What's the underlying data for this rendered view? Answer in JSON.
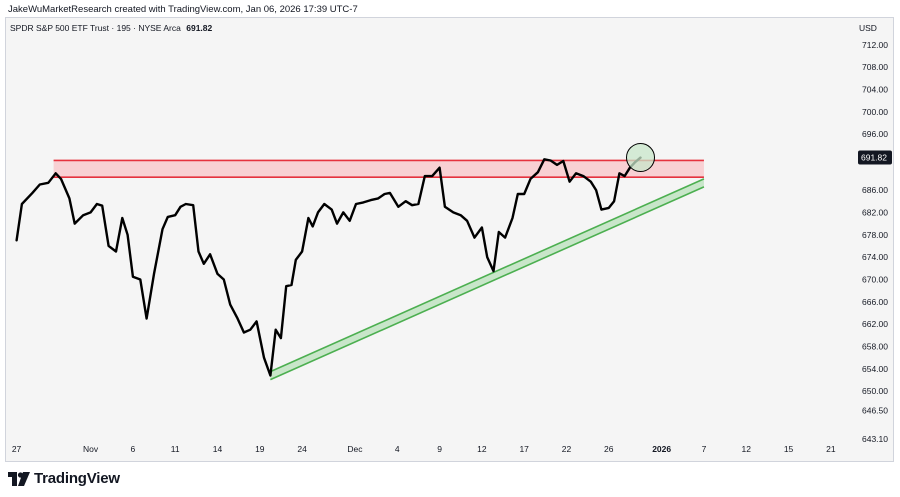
{
  "header": {
    "attribution": "JakeWuMarketResearch created with TradingView.com, Jan 06, 2026 17:39 UTC-7"
  },
  "legend": {
    "symbol": "SPDR S&P 500 ETF Trust · 195 · NYSE Arca",
    "last": "691.82"
  },
  "currency": "USD",
  "footer": {
    "brand": "TradingView"
  },
  "colors": {
    "price_line": "#000000",
    "resistance": "#e5323e",
    "resistance_fill": "#f8c9cc",
    "support": "#4caf50",
    "support_fill": "#c8e6c9",
    "price_label_bg": "#131722",
    "circle_fill": "#c8e6c9",
    "plot_background": "#f5f5f5"
  },
  "chart_data": {
    "type": "line",
    "ylim": [
      643.1,
      716
    ],
    "y_ticks": [
      "712.00",
      "708.00",
      "704.00",
      "700.00",
      "696.00",
      "686.00",
      "682.00",
      "678.00",
      "674.00",
      "670.00",
      "666.00",
      "662.00",
      "658.00",
      "654.00",
      "650.00",
      "646.50",
      "643.10"
    ],
    "current_price_label": "691.82",
    "x_range": [
      -1,
      79
    ],
    "x_ticks": [
      {
        "label": "27",
        "i": 0,
        "bold": false
      },
      {
        "label": "Nov",
        "i": 7,
        "bold": false
      },
      {
        "label": "6",
        "i": 11,
        "bold": false
      },
      {
        "label": "11",
        "i": 15,
        "bold": false
      },
      {
        "label": "14",
        "i": 19,
        "bold": false
      },
      {
        "label": "19",
        "i": 23,
        "bold": false
      },
      {
        "label": "24",
        "i": 27,
        "bold": false
      },
      {
        "label": "Dec",
        "i": 32,
        "bold": false
      },
      {
        "label": "4",
        "i": 36,
        "bold": false
      },
      {
        "label": "9",
        "i": 40,
        "bold": false
      },
      {
        "label": "12",
        "i": 44,
        "bold": false
      },
      {
        "label": "17",
        "i": 48,
        "bold": false
      },
      {
        "label": "22",
        "i": 52,
        "bold": false
      },
      {
        "label": "26",
        "i": 56,
        "bold": false
      },
      {
        "label": "2026",
        "i": 61,
        "bold": true
      },
      {
        "label": "7",
        "i": 65,
        "bold": false
      },
      {
        "label": "12",
        "i": 69,
        "bold": false
      },
      {
        "label": "15",
        "i": 73,
        "bold": false
      },
      {
        "label": "21",
        "i": 77,
        "bold": false
      }
    ],
    "series": [
      {
        "points": [
          [
            0,
            677
          ],
          [
            0.5,
            683.5
          ],
          [
            1.5,
            685.5
          ],
          [
            2.2,
            687
          ],
          [
            3,
            687.3
          ],
          [
            3.7,
            689
          ],
          [
            4.2,
            688
          ],
          [
            5,
            684.5
          ],
          [
            5.5,
            680
          ],
          [
            6.3,
            681.5
          ],
          [
            7,
            682
          ],
          [
            7.6,
            683.5
          ],
          [
            8.1,
            683.2
          ],
          [
            8.7,
            676
          ],
          [
            9.4,
            675
          ],
          [
            10,
            681
          ],
          [
            10.5,
            678
          ],
          [
            11,
            670.5
          ],
          [
            11.7,
            670
          ],
          [
            12.3,
            663
          ],
          [
            13,
            671
          ],
          [
            13.8,
            679
          ],
          [
            14.3,
            681.2
          ],
          [
            15,
            681.5
          ],
          [
            15.5,
            683
          ],
          [
            16,
            683.5
          ],
          [
            16.7,
            683.3
          ],
          [
            17.2,
            675
          ],
          [
            17.7,
            672.8
          ],
          [
            18.3,
            674.5
          ],
          [
            19,
            671
          ],
          [
            19.6,
            670
          ],
          [
            20.2,
            665.5
          ],
          [
            20.9,
            663
          ],
          [
            21.5,
            660.5
          ],
          [
            22.1,
            661
          ],
          [
            22.7,
            662.5
          ],
          [
            23.4,
            656
          ],
          [
            24,
            652.8
          ],
          [
            24.5,
            661
          ],
          [
            25,
            659.5
          ],
          [
            25.5,
            668.8
          ],
          [
            26,
            669
          ],
          [
            26.4,
            673.5
          ],
          [
            27,
            675
          ],
          [
            27.6,
            681
          ],
          [
            28,
            679.5
          ],
          [
            28.5,
            682
          ],
          [
            29.1,
            683.5
          ],
          [
            29.8,
            682.5
          ],
          [
            30.3,
            680
          ],
          [
            30.9,
            682
          ],
          [
            31.5,
            680.5
          ],
          [
            32.1,
            683.5
          ],
          [
            32.8,
            683.8
          ],
          [
            33.5,
            684.2
          ],
          [
            34.2,
            684.5
          ],
          [
            34.8,
            685.3
          ],
          [
            35.3,
            685.5
          ],
          [
            36.1,
            683
          ],
          [
            36.8,
            684
          ],
          [
            37.4,
            683.3
          ],
          [
            38,
            683.5
          ],
          [
            38.6,
            688.5
          ],
          [
            39.3,
            688.5
          ],
          [
            40,
            690
          ],
          [
            40.5,
            683
          ],
          [
            41.3,
            682
          ],
          [
            42,
            681.5
          ],
          [
            42.6,
            680.5
          ],
          [
            43.3,
            677.5
          ],
          [
            44,
            679.3
          ],
          [
            44.5,
            674
          ],
          [
            45.1,
            671.5
          ],
          [
            45.6,
            678.5
          ],
          [
            46.2,
            677.5
          ],
          [
            46.9,
            681
          ],
          [
            47.4,
            685.3
          ],
          [
            48,
            685.3
          ],
          [
            48.6,
            688
          ],
          [
            49.3,
            689.2
          ],
          [
            49.9,
            691.5
          ],
          [
            50.5,
            691.3
          ],
          [
            51.1,
            690.5
          ],
          [
            51.7,
            691.2
          ],
          [
            52.3,
            687.5
          ],
          [
            52.9,
            689
          ],
          [
            53.6,
            688.5
          ],
          [
            54.3,
            687.5
          ],
          [
            54.8,
            686
          ],
          [
            55.3,
            682.5
          ],
          [
            56,
            682.8
          ],
          [
            56.5,
            684
          ],
          [
            57,
            689
          ],
          [
            57.5,
            688.5
          ],
          [
            58,
            690
          ],
          [
            58.5,
            691
          ],
          [
            59,
            691.82
          ]
        ]
      }
    ],
    "annotations": {
      "resistance_zone": {
        "x_start": 3.5,
        "x_end": 65,
        "low": 688.3,
        "high": 691.3
      },
      "support_trendline": {
        "x1": 24,
        "y1": 653.5,
        "x2": 65,
        "y2": 688.0
      },
      "highlight_circle": {
        "x": 59,
        "y": 691.82
      }
    }
  }
}
